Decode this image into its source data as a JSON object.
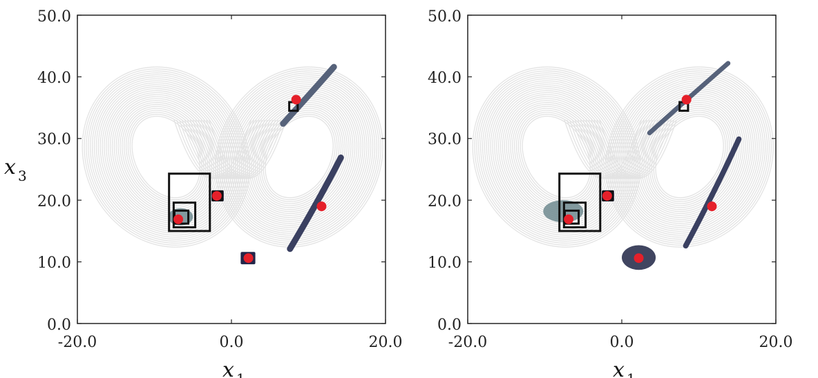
{
  "chart_data": [
    {
      "type": "scatter",
      "panel": "left",
      "xlabel_var": "x",
      "xlabel_sub": "1",
      "ylabel_var": "x",
      "ylabel_sub": "3",
      "xlim": [
        -20.0,
        20.0
      ],
      "ylim": [
        0.0,
        50.0
      ],
      "xticks": [
        "-20.0",
        "0.0",
        "20.0"
      ],
      "yticks": [
        "0.0",
        "10.0",
        "20.0",
        "30.0",
        "40.0",
        "50.0"
      ],
      "grid": false,
      "background_series": {
        "kind": "attractor-trajectory",
        "color": "#e3e3e3"
      },
      "red_points": [
        {
          "x": 8.4,
          "y": 36.3
        },
        {
          "x": -1.9,
          "y": 20.7
        },
        {
          "x": 11.7,
          "y": 19.0
        },
        {
          "x": -6.9,
          "y": 16.9
        },
        {
          "x": 2.2,
          "y": 10.6
        }
      ],
      "boxes": [
        {
          "x0": -8.1,
          "x1": -2.8,
          "y0": 15.0,
          "y1": 24.3
        },
        {
          "x0": -7.5,
          "x1": -4.7,
          "y0": 15.6,
          "y1": 19.6
        },
        {
          "x0": -7.4,
          "x1": -5.6,
          "y0": 16.2,
          "y1": 18.3
        },
        {
          "x0": 7.5,
          "x1": 8.6,
          "y0": 34.5,
          "y1": 35.9
        },
        {
          "x0": -2.4,
          "x1": -1.2,
          "y0": 20.0,
          "y1": 21.4
        }
      ],
      "clusters": [
        {
          "kind": "band",
          "color": "#4d5a73",
          "from": [
            6.7,
            32.4
          ],
          "to": [
            13.3,
            41.6
          ],
          "width": 0.8
        },
        {
          "kind": "band",
          "color": "#2f3658",
          "from": [
            7.6,
            12.1
          ],
          "to": [
            14.2,
            26.9
          ],
          "width": 0.8
        },
        {
          "kind": "square",
          "color": "#23264a",
          "x0": 1.2,
          "x1": 3.1,
          "y0": 9.6,
          "y1": 11.6
        },
        {
          "kind": "square",
          "color": "#23264a",
          "x0": -2.6,
          "x1": -1.0,
          "y0": 19.8,
          "y1": 21.6
        },
        {
          "kind": "blob",
          "color": "#6f8a8f",
          "cx": -6.6,
          "cy": 17.3,
          "rx": 1.6,
          "ry": 1.4
        }
      ]
    },
    {
      "type": "scatter",
      "panel": "right",
      "xlabel_var": "x",
      "xlabel_sub": "1",
      "xlim": [
        -20.0,
        20.0
      ],
      "ylim": [
        0.0,
        50.0
      ],
      "xticks": [
        "-20.0",
        "0.0",
        "20.0"
      ],
      "yticks": [
        "0.0",
        "10.0",
        "20.0",
        "30.0",
        "40.0",
        "50.0"
      ],
      "grid": false,
      "background_series": {
        "kind": "attractor-trajectory",
        "color": "#e3e3e3"
      },
      "red_points": [
        {
          "x": 8.4,
          "y": 36.3
        },
        {
          "x": -1.9,
          "y": 20.7
        },
        {
          "x": 11.7,
          "y": 19.0
        },
        {
          "x": -6.9,
          "y": 16.9
        },
        {
          "x": 2.2,
          "y": 10.6
        }
      ],
      "boxes": [
        {
          "x0": -8.1,
          "x1": -2.8,
          "y0": 15.0,
          "y1": 24.3
        },
        {
          "x0": -7.5,
          "x1": -4.7,
          "y0": 15.6,
          "y1": 19.6
        },
        {
          "x0": -7.4,
          "x1": -5.6,
          "y0": 16.2,
          "y1": 18.3
        },
        {
          "x0": 7.5,
          "x1": 8.6,
          "y0": 34.5,
          "y1": 35.9
        },
        {
          "x0": -2.4,
          "x1": -1.2,
          "y0": 20.0,
          "y1": 21.4
        }
      ],
      "clusters": [
        {
          "kind": "band",
          "color": "#4d5a73",
          "from": [
            3.6,
            30.9
          ],
          "to": [
            13.8,
            42.2
          ],
          "width": 0.6
        },
        {
          "kind": "band",
          "color": "#2f3658",
          "from": [
            8.3,
            12.6
          ],
          "to": [
            15.2,
            29.9
          ],
          "width": 0.7
        },
        {
          "kind": "blob",
          "color": "#1f2444",
          "cx": 2.2,
          "cy": 10.7,
          "rx": 2.2,
          "ry": 2.0
        },
        {
          "kind": "square",
          "color": "#23264a",
          "x0": -2.6,
          "x1": -1.0,
          "y0": 19.8,
          "y1": 21.6
        },
        {
          "kind": "blob",
          "color": "#6f8a8f",
          "cx": -7.6,
          "cy": 18.2,
          "rx": 2.6,
          "ry": 1.8
        }
      ]
    }
  ]
}
